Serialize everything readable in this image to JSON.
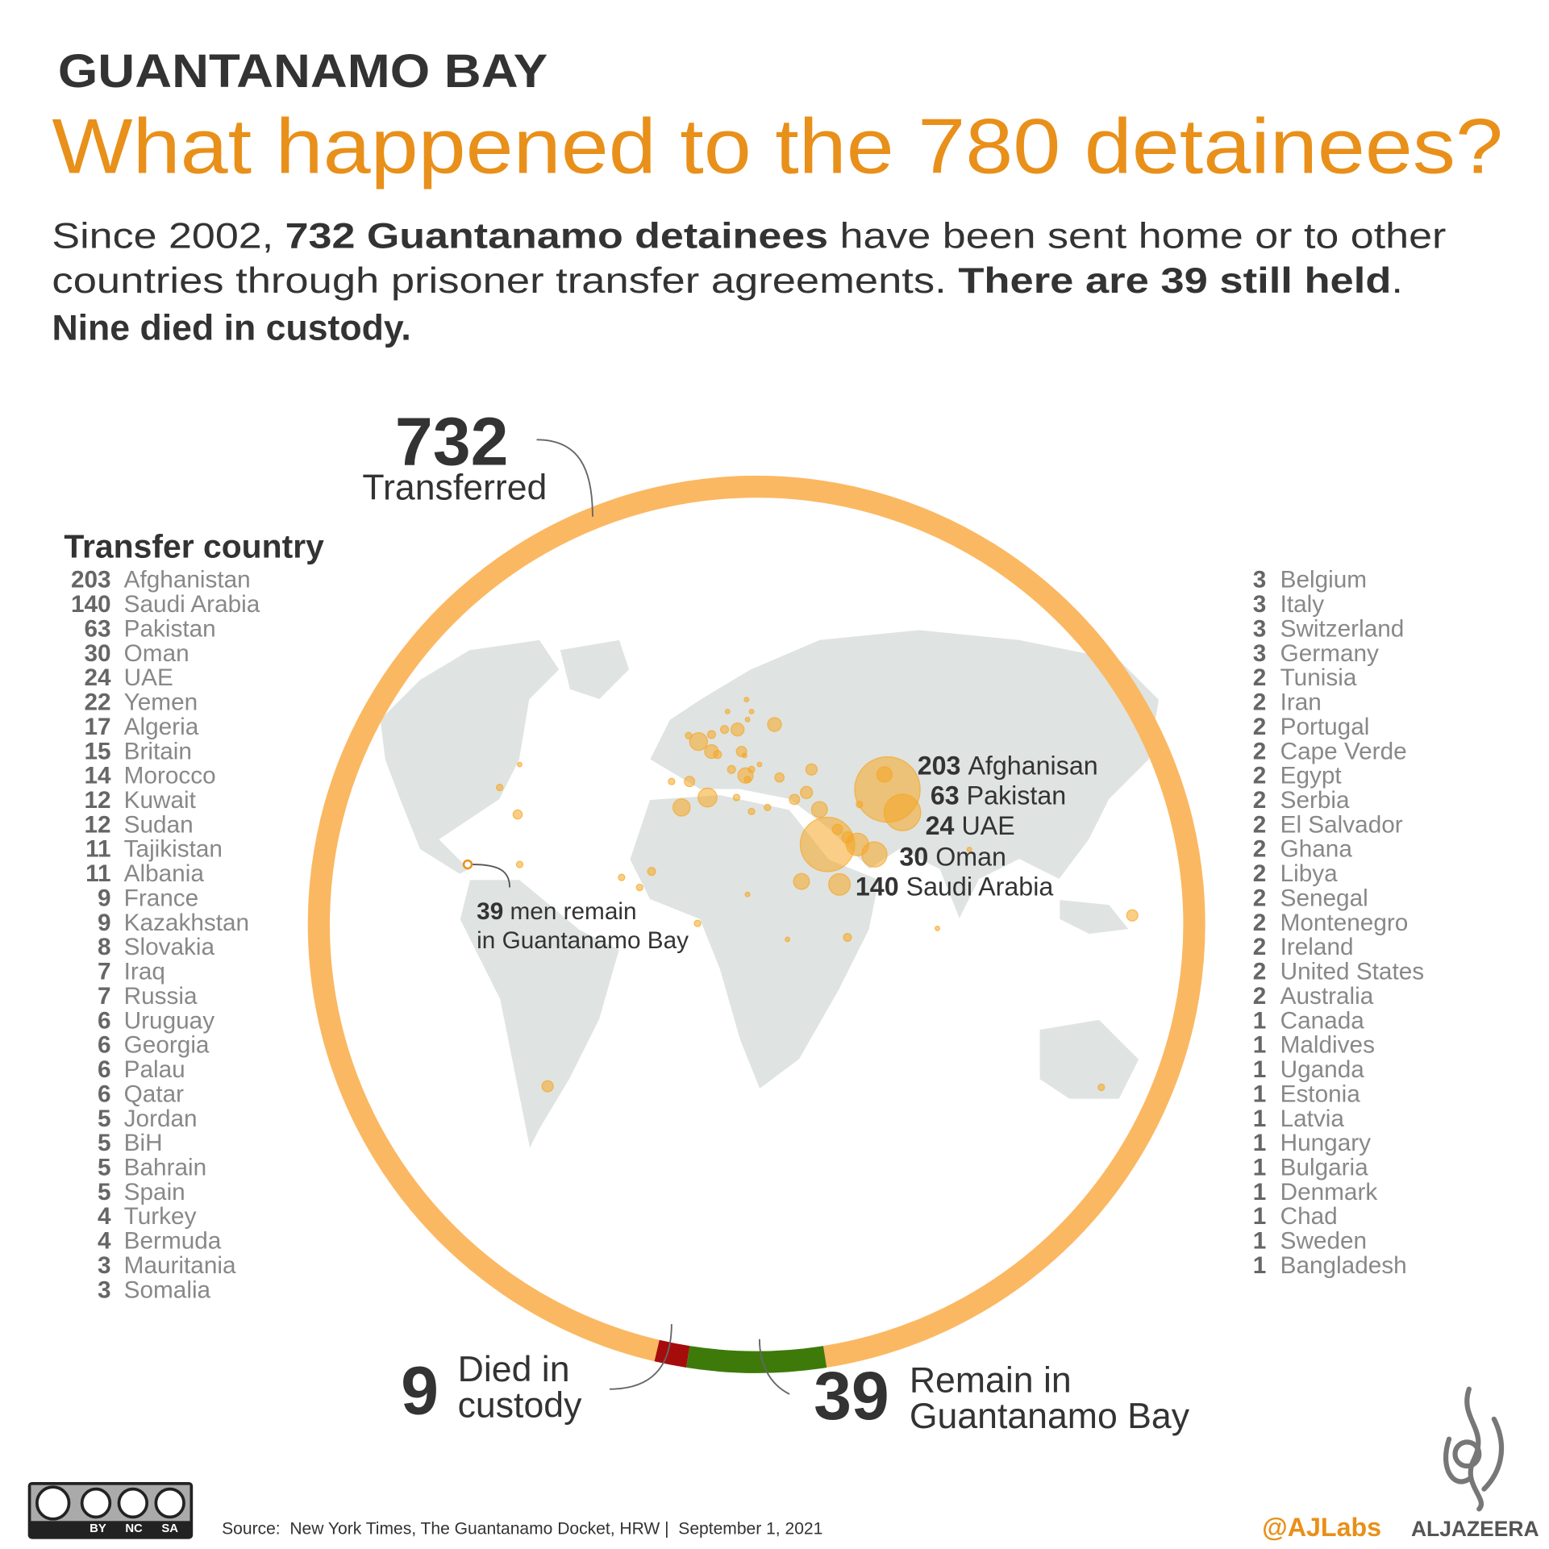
{
  "header": {
    "kicker": "GUANTANAMO BAY",
    "title": "What happened to the 780 detainees?",
    "intro": [
      [
        {
          "text": "Since 2002, ",
          "bold": false
        },
        {
          "text": "732 Guantanamo detainees",
          "bold": true
        },
        {
          "text": " have been sent home or to other",
          "bold": false
        }
      ],
      [
        {
          "text": "countries through prisoner transfer agreements. ",
          "bold": false
        },
        {
          "text": "There are 39 still held",
          "bold": true
        },
        {
          "text": ".",
          "bold": false
        }
      ],
      [
        {
          "text": "Nine died in custody.",
          "bold": true
        }
      ]
    ]
  },
  "chart_data": {
    "type": "donut",
    "categories": [
      "Transferred",
      "Died in custody",
      "Remain in Guantanamo Bay"
    ],
    "values": [
      732,
      9,
      39
    ],
    "colors": [
      "#fbb862",
      "#a50d0d",
      "#3d7a0a"
    ]
  },
  "countries": {
    "title": "Transfer country",
    "left": [
      {
        "value": 203,
        "name": "Afghanistan"
      },
      {
        "value": 140,
        "name": "Saudi Arabia"
      },
      {
        "value": 63,
        "name": "Pakistan"
      },
      {
        "value": 30,
        "name": "Oman"
      },
      {
        "value": 24,
        "name": "UAE"
      },
      {
        "value": 22,
        "name": "Yemen"
      },
      {
        "value": 17,
        "name": "Algeria"
      },
      {
        "value": 15,
        "name": "Britain"
      },
      {
        "value": 14,
        "name": "Morocco"
      },
      {
        "value": 12,
        "name": "Kuwait"
      },
      {
        "value": 12,
        "name": "Sudan"
      },
      {
        "value": 11,
        "name": "Tajikistan"
      },
      {
        "value": 11,
        "name": "Albania"
      },
      {
        "value": 9,
        "name": "France"
      },
      {
        "value": 9,
        "name": "Kazakhstan"
      },
      {
        "value": 8,
        "name": "Slovakia"
      },
      {
        "value": 7,
        "name": "Iraq"
      },
      {
        "value": 7,
        "name": "Russia"
      },
      {
        "value": 6,
        "name": "Uruguay"
      },
      {
        "value": 6,
        "name": "Georgia"
      },
      {
        "value": 6,
        "name": "Palau"
      },
      {
        "value": 6,
        "name": "Qatar"
      },
      {
        "value": 5,
        "name": "Jordan"
      },
      {
        "value": 5,
        "name": "BiH"
      },
      {
        "value": 5,
        "name": "Bahrain"
      },
      {
        "value": 5,
        "name": "Spain"
      },
      {
        "value": 4,
        "name": "Turkey"
      },
      {
        "value": 4,
        "name": "Bermuda"
      },
      {
        "value": 3,
        "name": "Mauritania"
      },
      {
        "value": 3,
        "name": "Somalia"
      }
    ],
    "right": [
      {
        "value": 3,
        "name": "Belgium"
      },
      {
        "value": 3,
        "name": "Italy"
      },
      {
        "value": 3,
        "name": "Switzerland"
      },
      {
        "value": 3,
        "name": "Germany"
      },
      {
        "value": 2,
        "name": "Tunisia"
      },
      {
        "value": 2,
        "name": "Iran"
      },
      {
        "value": 2,
        "name": "Portugal"
      },
      {
        "value": 2,
        "name": "Cape Verde"
      },
      {
        "value": 2,
        "name": "Egypt"
      },
      {
        "value": 2,
        "name": "Serbia"
      },
      {
        "value": 2,
        "name": "El Salvador"
      },
      {
        "value": 2,
        "name": "Ghana"
      },
      {
        "value": 2,
        "name": "Libya"
      },
      {
        "value": 2,
        "name": "Senegal"
      },
      {
        "value": 2,
        "name": "Montenegro"
      },
      {
        "value": 2,
        "name": "Ireland"
      },
      {
        "value": 2,
        "name": "United States"
      },
      {
        "value": 2,
        "name": "Australia"
      },
      {
        "value": 1,
        "name": "Canada"
      },
      {
        "value": 1,
        "name": "Maldives"
      },
      {
        "value": 1,
        "name": "Uganda"
      },
      {
        "value": 1,
        "name": "Estonia"
      },
      {
        "value": 1,
        "name": "Latvia"
      },
      {
        "value": 1,
        "name": "Hungary"
      },
      {
        "value": 1,
        "name": "Bulgaria"
      },
      {
        "value": 1,
        "name": "Denmark"
      },
      {
        "value": 1,
        "name": "Chad"
      },
      {
        "value": 1,
        "name": "Sweden"
      },
      {
        "value": 1,
        "name": "Bangladesh"
      }
    ]
  },
  "map_labels": [
    {
      "value": 203,
      "name": "Afghanisan"
    },
    {
      "value": 63,
      "name": "Pakistan"
    },
    {
      "value": 24,
      "name": "UAE"
    },
    {
      "value": 30,
      "name": "Oman"
    },
    {
      "value": 140,
      "name": "Saudi Arabia"
    }
  ],
  "guantanamo_label": {
    "value": 39,
    "line1": "men remain",
    "line2": "in Guantanamo Bay"
  },
  "footer": {
    "license": [
      "BY",
      "NC",
      "SA"
    ],
    "source": "Source:  New York Times, The Guantanamo Docket, HRW |  September 1, 2021",
    "handle": "@AJLabs",
    "brand": "ALJAZEERA"
  }
}
